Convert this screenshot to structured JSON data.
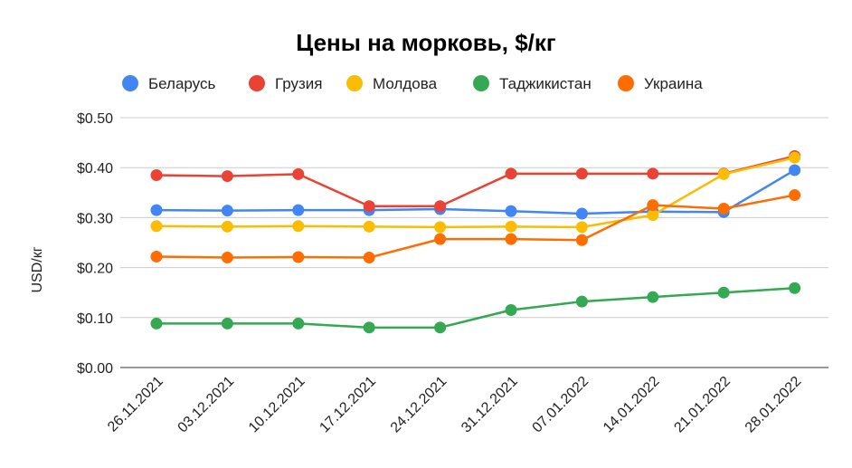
{
  "chart_data": {
    "type": "line",
    "title": "Цены на морковь, $/кг",
    "xlabel": "",
    "ylabel": "USD/кг",
    "ylim": [
      0,
      0.5
    ],
    "yticks": [
      "$0.00",
      "$0.10",
      "$0.20",
      "$0.30",
      "$0.40",
      "$0.50"
    ],
    "ytick_values": [
      0,
      0.1,
      0.2,
      0.3,
      0.4,
      0.5
    ],
    "grid": true,
    "legend_position": "top",
    "categories": [
      "26.11.2021",
      "03.12.2021",
      "10.12.2021",
      "17.12.2021",
      "24.12.2021",
      "31.12.2021",
      "07.01.2022",
      "14.01.2022",
      "21.01.2022",
      "28.01.2022"
    ],
    "series": [
      {
        "name": "Беларусь",
        "color": "#4285f4",
        "values": [
          0.315,
          0.314,
          0.315,
          0.315,
          0.317,
          0.313,
          0.308,
          0.312,
          0.311,
          0.395
        ]
      },
      {
        "name": "Грузия",
        "color": "#ea4335",
        "values": [
          0.385,
          0.383,
          0.387,
          0.323,
          0.323,
          0.388,
          0.388,
          0.388,
          0.388,
          0.423
        ]
      },
      {
        "name": "Молдова",
        "color": "#fbbc04",
        "values": [
          0.283,
          0.282,
          0.283,
          0.282,
          0.281,
          0.282,
          0.281,
          0.305,
          0.387,
          0.42
        ]
      },
      {
        "name": "Таджикистан",
        "color": "#34a853",
        "values": [
          0.088,
          0.088,
          0.088,
          0.08,
          0.08,
          0.115,
          0.132,
          0.141,
          0.15,
          0.159
        ]
      },
      {
        "name": "Украина",
        "color": "#ff6d01",
        "values": [
          0.222,
          0.22,
          0.221,
          0.22,
          0.257,
          0.257,
          0.255,
          0.325,
          0.318,
          0.345
        ]
      }
    ]
  }
}
